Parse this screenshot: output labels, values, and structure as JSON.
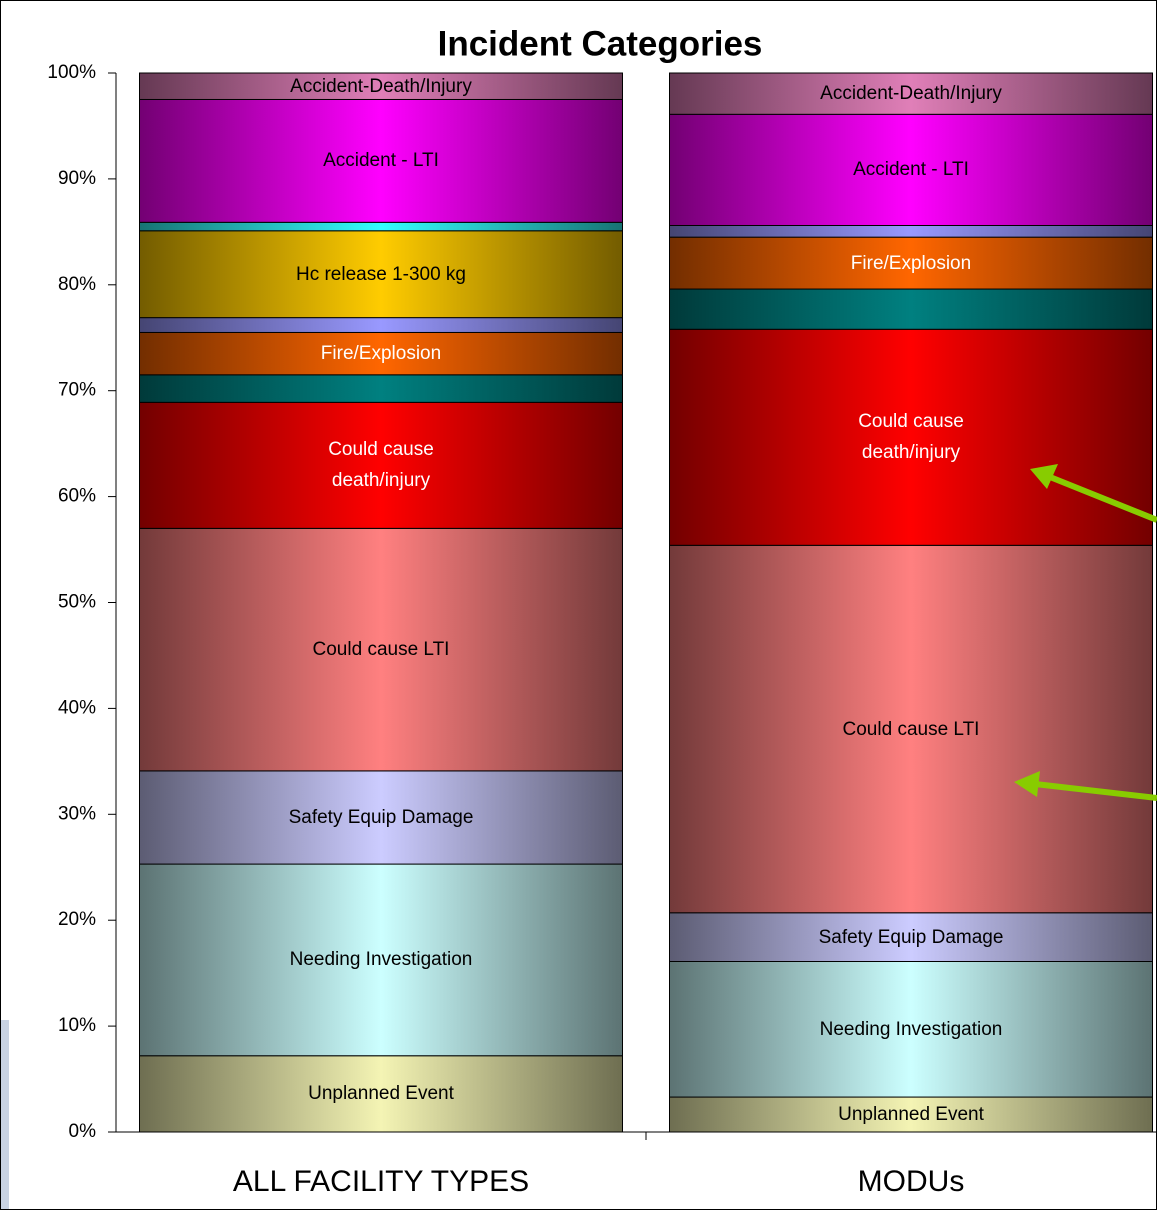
{
  "chart_data": {
    "type": "stacked_bar",
    "title": "Incident Categories",
    "categories": [
      "ALL FACILITY TYPES",
      "MODUs"
    ],
    "series": [
      {
        "name": "Unplanned Event",
        "color": "#f4f4b4",
        "values": [
          7.2,
          3.3
        ]
      },
      {
        "name": "Needing Investigation",
        "color": "#ccffff",
        "values": [
          18.1,
          12.8
        ]
      },
      {
        "name": "Safety Equip Damage",
        "color": "#ccccff",
        "values": [
          8.8,
          4.6
        ]
      },
      {
        "name": "Could cause LTI",
        "color": "#ff8080",
        "values": [
          22.9,
          34.7
        ]
      },
      {
        "name": "Could cause death/injury",
        "color": "#ff0000",
        "values": [
          11.9,
          20.4
        ]
      },
      {
        "color": "#008080",
        "values": [
          2.6,
          3.8
        ]
      },
      {
        "name": "Fire/Explosion",
        "color": "#ff6600",
        "values": [
          4.0,
          4.9
        ]
      },
      {
        "color": "#9999ff",
        "values": [
          1.4,
          1.1
        ]
      },
      {
        "name": "Hc release 1-300 kg",
        "color": "#ffcc00",
        "values": [
          8.2,
          0
        ]
      },
      {
        "color": "#33ffff",
        "values": [
          0.8,
          0
        ]
      },
      {
        "name": "Accident - LTI",
        "color": "#ff00ff",
        "values": [
          11.6,
          10.5
        ]
      },
      {
        "name": "Accident-Death/Injury",
        "color": "#e07fb8",
        "values": [
          2.5,
          3.9
        ]
      }
    ],
    "ylim": [
      0,
      100
    ],
    "yticks": [
      {
        "value": 0,
        "label": "0%"
      },
      {
        "value": 10,
        "label": "10%"
      },
      {
        "value": 20,
        "label": "20%"
      },
      {
        "value": 30,
        "label": "30%"
      },
      {
        "value": 40,
        "label": "40%"
      },
      {
        "value": 50,
        "label": "50%"
      },
      {
        "value": 60,
        "label": "60%"
      },
      {
        "value": 70,
        "label": "70%"
      },
      {
        "value": 80,
        "label": "80%"
      },
      {
        "value": 90,
        "label": "90%"
      },
      {
        "value": 100,
        "label": "100%"
      }
    ]
  }
}
